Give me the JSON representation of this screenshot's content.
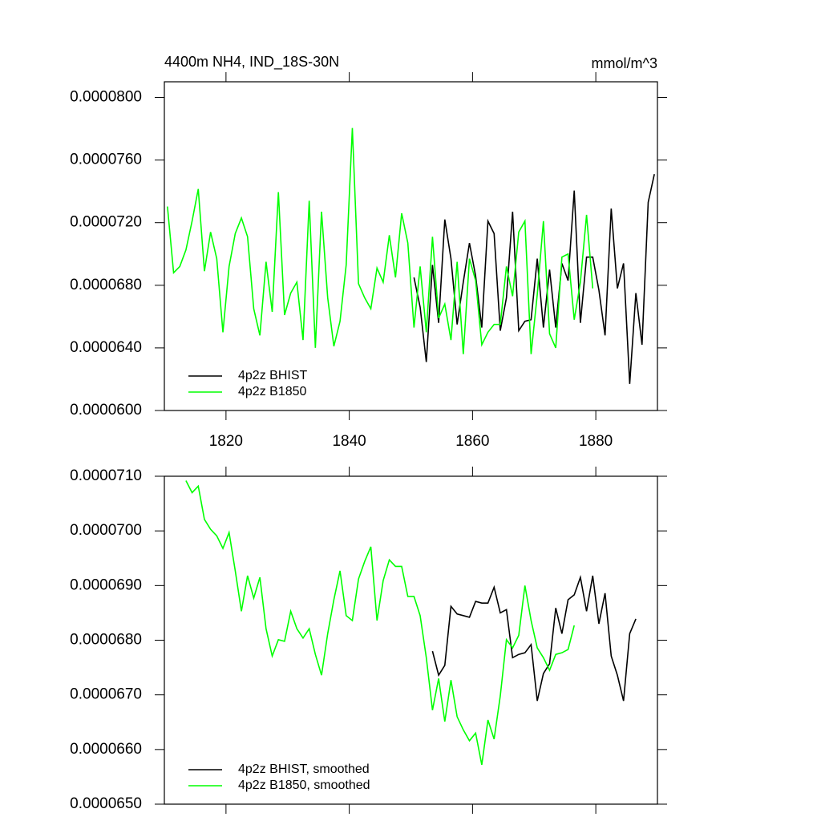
{
  "chart_data": [
    {
      "type": "line",
      "title": "4400m NH4, IND_18S-30N",
      "subtitle": "mmol/m^3",
      "x": [
        1810.5,
        1811.5,
        1812.5,
        1813.5,
        1814.5,
        1815.5,
        1816.5,
        1817.5,
        1818.5,
        1819.5,
        1820.5,
        1821.5,
        1822.5,
        1823.5,
        1824.5,
        1825.5,
        1826.5,
        1827.5,
        1828.5,
        1829.5,
        1830.5,
        1831.5,
        1832.5,
        1833.5,
        1834.5,
        1835.5,
        1836.5,
        1837.5,
        1838.5,
        1839.5,
        1840.5,
        1841.5,
        1842.5,
        1843.5,
        1844.5,
        1845.5,
        1846.5,
        1847.5,
        1848.5,
        1849.5,
        1850.5,
        1851.5,
        1852.5,
        1853.5,
        1854.5,
        1855.5,
        1856.5,
        1857.5,
        1858.5,
        1859.5,
        1860.5,
        1861.5,
        1862.5,
        1863.5,
        1864.5,
        1865.5,
        1866.5,
        1867.5,
        1868.5,
        1869.5,
        1870.5,
        1871.5,
        1872.5,
        1873.5,
        1874.5,
        1875.5,
        1876.5,
        1877.5,
        1878.5,
        1879.5,
        1880.5,
        1881.5,
        1882.5,
        1883.5,
        1884.5,
        1885.5,
        1886.5,
        1887.5,
        1888.5,
        1889.5
      ],
      "series": [
        {
          "name": "4p2z BHIST",
          "color": "#000000",
          "values": [
            null,
            null,
            null,
            null,
            null,
            null,
            null,
            null,
            null,
            null,
            null,
            null,
            null,
            null,
            null,
            null,
            null,
            null,
            null,
            null,
            null,
            null,
            null,
            null,
            null,
            null,
            null,
            null,
            null,
            null,
            null,
            null,
            null,
            null,
            null,
            null,
            null,
            null,
            null,
            null,
            6.85e-05,
            6.66e-05,
            6.31e-05,
            6.93e-05,
            6.56e-05,
            7.22e-05,
            6.97e-05,
            6.55e-05,
            6.82e-05,
            7.07e-05,
            6.86e-05,
            6.53e-05,
            7.21e-05,
            7.13e-05,
            6.51e-05,
            6.72e-05,
            7.27e-05,
            6.51e-05,
            6.57e-05,
            6.58e-05,
            6.97e-05,
            6.53e-05,
            6.9e-05,
            6.53e-05,
            6.94e-05,
            6.83e-05,
            7.405e-05,
            6.56e-05,
            6.98e-05,
            6.98e-05,
            6.77e-05,
            6.48e-05,
            7.29e-05,
            6.78e-05,
            6.94e-05,
            6.17e-05,
            6.75e-05,
            6.42e-05,
            7.33e-05,
            7.51e-05
          ]
        },
        {
          "name": "4p2z B1850",
          "color": "#00ff00",
          "values": [
            7.303e-05,
            6.88e-05,
            6.92e-05,
            7.026e-05,
            7.21e-05,
            7.415e-05,
            6.89e-05,
            7.14e-05,
            6.97e-05,
            6.5e-05,
            6.92e-05,
            7.13e-05,
            7.23e-05,
            7.11e-05,
            6.65e-05,
            6.48e-05,
            6.95e-05,
            6.63e-05,
            7.395e-05,
            6.61e-05,
            6.75e-05,
            6.82e-05,
            6.45e-05,
            7.34e-05,
            6.4e-05,
            7.27e-05,
            6.72e-05,
            6.41e-05,
            6.57e-05,
            6.93e-05,
            7.805e-05,
            6.81e-05,
            6.72e-05,
            6.65e-05,
            6.91e-05,
            6.82e-05,
            7.12e-05,
            6.85e-05,
            7.26e-05,
            7.07e-05,
            6.53e-05,
            6.92e-05,
            6.5e-05,
            7.11e-05,
            6.59e-05,
            6.68e-05,
            6.45e-05,
            6.95e-05,
            6.36e-05,
            6.97e-05,
            6.83e-05,
            6.42e-05,
            6.5e-05,
            6.55e-05,
            6.55e-05,
            6.92e-05,
            6.73e-05,
            7.14e-05,
            7.21e-05,
            6.36e-05,
            6.74e-05,
            7.21e-05,
            6.49e-05,
            6.4e-05,
            6.98e-05,
            7e-05,
            6.58e-05,
            6.82e-05,
            7.25e-05,
            6.78e-05,
            null,
            null,
            null,
            null,
            null,
            null,
            null,
            null,
            null,
            null
          ]
        }
      ],
      "xlim": [
        1810,
        1890
      ],
      "xticks": [
        1820,
        1840,
        1860,
        1880
      ],
      "ylim": [
        6e-05,
        8.1e-05
      ],
      "yticks": [
        {
          "value": 6e-05,
          "label": "0.0000600"
        },
        {
          "value": 6.4e-05,
          "label": "0.0000640"
        },
        {
          "value": 6.8e-05,
          "label": "0.0000680"
        },
        {
          "value": 7.2e-05,
          "label": "0.0000720"
        },
        {
          "value": 7.6e-05,
          "label": "0.0000760"
        },
        {
          "value": 8e-05,
          "label": "0.0000800"
        }
      ],
      "legend": "lower left"
    },
    {
      "type": "line",
      "x": [
        1813.5,
        1814.5,
        1815.5,
        1816.5,
        1817.5,
        1818.5,
        1819.5,
        1820.5,
        1821.5,
        1822.5,
        1823.5,
        1824.5,
        1825.5,
        1826.5,
        1827.5,
        1828.5,
        1829.5,
        1830.5,
        1831.5,
        1832.5,
        1833.5,
        1834.5,
        1835.5,
        1836.5,
        1837.5,
        1838.5,
        1839.5,
        1840.5,
        1841.5,
        1842.5,
        1843.5,
        1844.5,
        1845.5,
        1846.5,
        1847.5,
        1848.5,
        1849.5,
        1850.5,
        1851.5,
        1852.5,
        1853.5,
        1854.5,
        1855.5,
        1856.5,
        1857.5,
        1858.5,
        1859.5,
        1860.5,
        1861.5,
        1862.5,
        1863.5,
        1864.5,
        1865.5,
        1866.5,
        1867.5,
        1868.5,
        1869.5,
        1870.5,
        1871.5,
        1872.5,
        1873.5,
        1874.5,
        1875.5,
        1876.5,
        1877.5,
        1878.5,
        1879.5,
        1880.5,
        1881.5,
        1882.5,
        1883.5,
        1884.5,
        1885.5,
        1886.5
      ],
      "series": [
        {
          "name": "4p2z BHIST, smoothed",
          "color": "#000000",
          "values": [
            null,
            null,
            null,
            null,
            null,
            null,
            null,
            null,
            null,
            null,
            null,
            null,
            null,
            null,
            null,
            null,
            null,
            null,
            null,
            null,
            null,
            null,
            null,
            null,
            null,
            null,
            null,
            null,
            null,
            null,
            null,
            null,
            null,
            null,
            null,
            null,
            null,
            null,
            null,
            null,
            6.78e-05,
            6.736e-05,
            6.754e-05,
            6.862e-05,
            6.848e-05,
            6.845e-05,
            6.842e-05,
            6.871e-05,
            6.868e-05,
            6.868e-05,
            6.897e-05,
            6.85e-05,
            6.856e-05,
            6.768e-05,
            6.774e-05,
            6.777e-05,
            6.792e-05,
            6.689e-05,
            6.739e-05,
            6.757e-05,
            6.859e-05,
            6.812e-05,
            6.874e-05,
            6.883e-05,
            6.915e-05,
            6.853e-05,
            6.918e-05,
            6.83e-05,
            6.886e-05,
            6.771e-05,
            6.736e-05,
            6.689e-05,
            6.812e-05,
            6.839e-05
          ]
        },
        {
          "name": "4p2z B1850, smoothed",
          "color": "#00ff00",
          "values": [
            7.092e-05,
            7.07e-05,
            7.082e-05,
            7.021e-05,
            7.003e-05,
            6.991e-05,
            6.968e-05,
            6.997e-05,
            6.927e-05,
            6.853e-05,
            6.918e-05,
            6.877e-05,
            6.915e-05,
            6.821e-05,
            6.771e-05,
            6.801e-05,
            6.798e-05,
            6.853e-05,
            6.821e-05,
            6.804e-05,
            6.821e-05,
            6.774e-05,
            6.736e-05,
            6.812e-05,
            6.874e-05,
            6.927e-05,
            6.845e-05,
            6.836e-05,
            6.912e-05,
            6.944e-05,
            6.971e-05,
            6.836e-05,
            6.909e-05,
            6.947e-05,
            6.935e-05,
            6.935e-05,
            6.88e-05,
            6.88e-05,
            6.845e-05,
            6.768e-05,
            6.672e-05,
            6.73e-05,
            6.651e-05,
            6.727e-05,
            6.66e-05,
            6.636e-05,
            6.616e-05,
            6.63e-05,
            6.572e-05,
            6.654e-05,
            6.619e-05,
            6.698e-05,
            6.801e-05,
            6.786e-05,
            6.809e-05,
            6.9e-05,
            6.836e-05,
            6.786e-05,
            6.768e-05,
            6.745e-05,
            6.774e-05,
            6.777e-05,
            6.783e-05,
            6.827e-05,
            null,
            null,
            null,
            null,
            null,
            null,
            null,
            null,
            null,
            null
          ]
        }
      ],
      "xlim": [
        1810,
        1890
      ],
      "xticks": [
        1820,
        1840,
        1860,
        1880
      ],
      "ylim": [
        6.5e-05,
        7.1e-05
      ],
      "yticks": [
        {
          "value": 6.5e-05,
          "label": "0.0000650"
        },
        {
          "value": 6.6e-05,
          "label": "0.0000660"
        },
        {
          "value": 6.7e-05,
          "label": "0.0000670"
        },
        {
          "value": 6.8e-05,
          "label": "0.0000680"
        },
        {
          "value": 6.9e-05,
          "label": "0.0000690"
        },
        {
          "value": 7e-05,
          "label": "0.0000700"
        },
        {
          "value": 7.1e-05,
          "label": "0.0000710"
        }
      ],
      "legend": "lower left"
    }
  ]
}
